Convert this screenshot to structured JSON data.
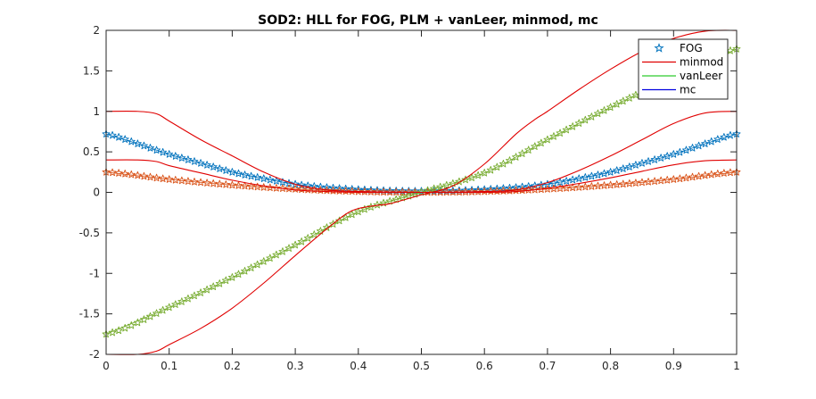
{
  "chart_data": {
    "type": "line",
    "title": "SOD2: HLL for FOG, PLM + vanLeer, minmod, mc",
    "xlabel": "",
    "ylabel": "",
    "xlim": [
      0,
      1
    ],
    "ylim": [
      -2,
      2
    ],
    "xticks": [
      0,
      0.1,
      0.2,
      0.3,
      0.4,
      0.5,
      0.6,
      0.7,
      0.8,
      0.9,
      1
    ],
    "xtick_labels": [
      "0",
      "0.1",
      "0.2",
      "0.3",
      "0.4",
      "0.5",
      "0.6",
      "0.7",
      "0.8",
      "0.9",
      "1"
    ],
    "yticks": [
      -2,
      -1.5,
      -1,
      -0.5,
      0,
      0.5,
      1,
      1.5,
      2
    ],
    "ytick_labels": [
      "-2",
      "-1.5",
      "-1",
      "-0.5",
      "0",
      "0.5",
      "1",
      "1.5",
      "2"
    ],
    "grid": false,
    "legend": {
      "position": "top-right",
      "entries": [
        {
          "label": "FOG",
          "color": "#0072bd",
          "marker": "star"
        },
        {
          "label": "minmod",
          "color": "#e00000",
          "marker": "line"
        },
        {
          "label": "vanLeer",
          "color": "#2ecc2e",
          "marker": "line"
        },
        {
          "label": "mc",
          "color": "#0000e0",
          "marker": "line"
        }
      ]
    },
    "series": [
      {
        "group": "FOG",
        "color": "#0072bd",
        "marker": "star",
        "points": [
          [
            0,
            0.72
          ],
          [
            0.05,
            0.6
          ],
          [
            0.1,
            0.47
          ],
          [
            0.15,
            0.36
          ],
          [
            0.2,
            0.25
          ],
          [
            0.25,
            0.17
          ],
          [
            0.3,
            0.1
          ],
          [
            0.35,
            0.06
          ],
          [
            0.4,
            0.035
          ],
          [
            0.45,
            0.02
          ],
          [
            0.5,
            0.015
          ],
          [
            0.55,
            0.02
          ],
          [
            0.6,
            0.035
          ],
          [
            0.65,
            0.06
          ],
          [
            0.7,
            0.1
          ],
          [
            0.75,
            0.17
          ],
          [
            0.8,
            0.25
          ],
          [
            0.85,
            0.36
          ],
          [
            0.9,
            0.47
          ],
          [
            0.95,
            0.6
          ],
          [
            1,
            0.72
          ]
        ]
      },
      {
        "group": "FOG",
        "color": "#d95319",
        "marker": "star",
        "points": [
          [
            0,
            0.25
          ],
          [
            0.1,
            0.16
          ],
          [
            0.2,
            0.09
          ],
          [
            0.3,
            0.04
          ],
          [
            0.4,
            0.01
          ],
          [
            0.5,
            0.0
          ],
          [
            0.6,
            0.01
          ],
          [
            0.7,
            0.04
          ],
          [
            0.8,
            0.09
          ],
          [
            0.9,
            0.16
          ],
          [
            1,
            0.25
          ]
        ]
      },
      {
        "group": "FOG",
        "color": "#77ac30",
        "marker": "star",
        "points": [
          [
            0,
            -1.75
          ],
          [
            0.1,
            -1.42
          ],
          [
            0.2,
            -1.05
          ],
          [
            0.3,
            -0.65
          ],
          [
            0.4,
            -0.24
          ],
          [
            0.5,
            0.0
          ],
          [
            0.6,
            0.24
          ],
          [
            0.7,
            0.65
          ],
          [
            0.8,
            1.05
          ],
          [
            0.9,
            1.42
          ],
          [
            1,
            1.77
          ]
        ]
      },
      {
        "group": "minmod",
        "color": "#e00000",
        "marker": "line",
        "points": [
          [
            0,
            1.0
          ],
          [
            0.05,
            1.0
          ],
          [
            0.08,
            0.97
          ],
          [
            0.1,
            0.88
          ],
          [
            0.15,
            0.65
          ],
          [
            0.2,
            0.45
          ],
          [
            0.25,
            0.25
          ],
          [
            0.3,
            0.1
          ],
          [
            0.35,
            0.03
          ],
          [
            0.4,
            0.01
          ],
          [
            0.5,
            0.0
          ],
          [
            0.6,
            0.01
          ],
          [
            0.65,
            0.03
          ],
          [
            0.7,
            0.12
          ],
          [
            0.75,
            0.27
          ],
          [
            0.8,
            0.45
          ],
          [
            0.85,
            0.65
          ],
          [
            0.9,
            0.85
          ],
          [
            0.95,
            0.98
          ],
          [
            1,
            1.0
          ]
        ]
      },
      {
        "group": "minmod",
        "color": "#e00000",
        "marker": "line",
        "points": [
          [
            0,
            0.4
          ],
          [
            0.05,
            0.4
          ],
          [
            0.08,
            0.38
          ],
          [
            0.1,
            0.33
          ],
          [
            0.15,
            0.24
          ],
          [
            0.2,
            0.15
          ],
          [
            0.25,
            0.08
          ],
          [
            0.3,
            0.03
          ],
          [
            0.35,
            0.01
          ],
          [
            0.4,
            0.0
          ],
          [
            0.5,
            0.0
          ],
          [
            0.6,
            0.0
          ],
          [
            0.65,
            0.01
          ],
          [
            0.7,
            0.05
          ],
          [
            0.75,
            0.11
          ],
          [
            0.8,
            0.18
          ],
          [
            0.85,
            0.26
          ],
          [
            0.9,
            0.34
          ],
          [
            0.95,
            0.39
          ],
          [
            1,
            0.4
          ]
        ]
      },
      {
        "group": "minmod",
        "color": "#e00000",
        "marker": "line",
        "points": [
          [
            0,
            -2.0
          ],
          [
            0.05,
            -2.0
          ],
          [
            0.08,
            -1.96
          ],
          [
            0.1,
            -1.88
          ],
          [
            0.15,
            -1.68
          ],
          [
            0.2,
            -1.43
          ],
          [
            0.25,
            -1.12
          ],
          [
            0.3,
            -0.78
          ],
          [
            0.35,
            -0.45
          ],
          [
            0.38,
            -0.27
          ],
          [
            0.4,
            -0.2
          ],
          [
            0.43,
            -0.16
          ],
          [
            0.45,
            -0.14
          ],
          [
            0.5,
            -0.03
          ],
          [
            0.55,
            0.08
          ],
          [
            0.6,
            0.35
          ],
          [
            0.65,
            0.72
          ],
          [
            0.68,
            0.9
          ],
          [
            0.7,
            1.0
          ],
          [
            0.75,
            1.27
          ],
          [
            0.8,
            1.52
          ],
          [
            0.85,
            1.74
          ],
          [
            0.9,
            1.9
          ],
          [
            0.95,
            1.99
          ],
          [
            1,
            2.0
          ]
        ]
      }
    ]
  }
}
